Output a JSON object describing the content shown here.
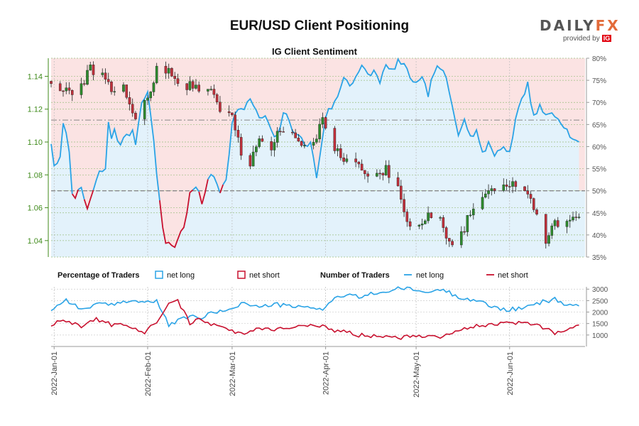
{
  "header": {
    "title": "EUR/USD Client Positioning",
    "logo_daily": "DAILY",
    "logo_fx": "FX",
    "logo_provided": "provided by",
    "logo_ig": "IG"
  },
  "colors": {
    "long": "#2aa3e6",
    "short": "#c8102e",
    "candle_up": "#2e8b2e",
    "candle_down": "#c0303b",
    "bg_short": "#fbe3e3",
    "bg_long": "#e3f2fb",
    "grid": "#6da84b",
    "axis_left": "#3f8a1a"
  },
  "chart_data": [
    {
      "id": "price_sentiment",
      "type": "line+candlestick",
      "title": "IG Client Sentiment",
      "x_range": [
        "2021-12-31",
        "2022-06-26"
      ],
      "y_price_range": [
        1.03,
        1.151
      ],
      "y_price_ticks": [
        "1.04",
        "1.06",
        "1.08",
        "1.10",
        "1.12",
        "1.14"
      ],
      "y_pct_range": [
        35,
        80
      ],
      "y_pct_ticks": [
        "35%",
        "40%",
        "45%",
        "50%",
        "55%",
        "60%",
        "65%",
        "70%",
        "75%",
        "80%"
      ],
      "reference_lines_pct": [
        50,
        66
      ],
      "pct_net_long_anchors": [
        [
          "2021-12-31",
          61
        ],
        [
          "2022-01-01",
          55
        ],
        [
          "2022-01-03",
          57
        ],
        [
          "2022-01-04",
          66
        ],
        [
          "2022-01-06",
          59
        ],
        [
          "2022-01-07",
          50
        ],
        [
          "2022-01-08",
          49
        ],
        [
          "2022-01-10",
          50
        ],
        [
          "2022-01-12",
          46
        ],
        [
          "2022-01-14",
          50
        ],
        [
          "2022-01-16",
          54
        ],
        [
          "2022-01-18",
          55
        ],
        [
          "2022-01-19",
          65
        ],
        [
          "2022-01-20",
          62
        ],
        [
          "2022-01-21",
          64
        ],
        [
          "2022-01-23",
          60
        ],
        [
          "2022-01-25",
          63
        ],
        [
          "2022-01-27",
          63
        ],
        [
          "2022-01-28",
          61
        ],
        [
          "2022-01-30",
          70
        ],
        [
          "2022-02-01",
          73
        ],
        [
          "2022-02-03",
          61
        ],
        [
          "2022-02-06",
          41
        ],
        [
          "2022-02-07",
          38.5
        ],
        [
          "2022-02-10",
          37.5
        ],
        [
          "2022-02-13",
          42
        ],
        [
          "2022-02-15",
          49
        ],
        [
          "2022-02-17",
          51
        ],
        [
          "2022-02-19",
          47
        ],
        [
          "2022-02-21",
          53
        ],
        [
          "2022-02-23",
          53
        ],
        [
          "2022-02-25",
          50
        ],
        [
          "2022-02-27",
          53
        ],
        [
          "2022-03-01",
          65
        ],
        [
          "2022-03-03",
          69
        ],
        [
          "2022-03-05",
          68
        ],
        [
          "2022-03-07",
          71
        ],
        [
          "2022-03-09",
          68
        ],
        [
          "2022-03-10",
          66
        ],
        [
          "2022-03-12",
          67
        ],
        [
          "2022-03-14",
          63
        ],
        [
          "2022-03-16",
          62
        ],
        [
          "2022-03-18",
          68
        ],
        [
          "2022-03-21",
          64
        ],
        [
          "2022-03-23",
          63
        ],
        [
          "2022-03-25",
          60
        ],
        [
          "2022-03-27",
          61
        ],
        [
          "2022-03-29",
          53
        ],
        [
          "2022-04-01",
          67
        ],
        [
          "2022-04-03",
          69
        ],
        [
          "2022-04-05",
          71
        ],
        [
          "2022-04-07",
          76
        ],
        [
          "2022-04-09",
          74
        ],
        [
          "2022-04-11",
          76
        ],
        [
          "2022-04-13",
          78
        ],
        [
          "2022-04-15",
          76
        ],
        [
          "2022-04-17",
          77
        ],
        [
          "2022-04-19",
          75
        ],
        [
          "2022-04-21",
          78
        ],
        [
          "2022-04-23",
          77
        ],
        [
          "2022-04-25",
          79.5
        ],
        [
          "2022-04-27",
          78
        ],
        [
          "2022-04-29",
          76
        ],
        [
          "2022-05-01",
          74
        ],
        [
          "2022-05-03",
          75
        ],
        [
          "2022-05-05",
          72
        ],
        [
          "2022-05-07",
          77
        ],
        [
          "2022-05-09",
          78
        ],
        [
          "2022-05-11",
          75
        ],
        [
          "2022-05-13",
          69
        ],
        [
          "2022-05-15",
          63
        ],
        [
          "2022-05-17",
          67
        ],
        [
          "2022-05-19",
          62
        ],
        [
          "2022-05-21",
          64
        ],
        [
          "2022-05-23",
          58
        ],
        [
          "2022-05-25",
          61
        ],
        [
          "2022-05-27",
          58
        ],
        [
          "2022-05-29",
          60
        ],
        [
          "2022-06-01",
          59
        ],
        [
          "2022-06-03",
          66
        ],
        [
          "2022-06-05",
          71
        ],
        [
          "2022-06-07",
          74
        ],
        [
          "2022-06-09",
          67
        ],
        [
          "2022-06-11",
          69
        ],
        [
          "2022-06-13",
          67
        ],
        [
          "2022-06-15",
          68
        ],
        [
          "2022-06-17",
          66
        ],
        [
          "2022-06-19",
          65
        ],
        [
          "2022-06-21",
          62
        ],
        [
          "2022-06-23",
          61
        ]
      ],
      "price_close_anchors": [
        [
          "2021-12-31",
          1.137
        ],
        [
          "2022-01-05",
          1.13
        ],
        [
          "2022-01-10",
          1.133
        ],
        [
          "2022-01-13",
          1.145
        ],
        [
          "2022-01-17",
          1.14
        ],
        [
          "2022-01-20",
          1.133
        ],
        [
          "2022-01-24",
          1.133
        ],
        [
          "2022-01-28",
          1.115
        ],
        [
          "2022-02-01",
          1.125
        ],
        [
          "2022-02-04",
          1.145
        ],
        [
          "2022-02-08",
          1.143
        ],
        [
          "2022-02-11",
          1.136
        ],
        [
          "2022-02-15",
          1.134
        ],
        [
          "2022-02-18",
          1.132
        ],
        [
          "2022-02-22",
          1.133
        ],
        [
          "2022-02-25",
          1.119
        ],
        [
          "2022-03-01",
          1.114
        ],
        [
          "2022-03-04",
          1.093
        ],
        [
          "2022-03-07",
          1.088
        ],
        [
          "2022-03-10",
          1.101
        ],
        [
          "2022-03-14",
          1.093
        ],
        [
          "2022-03-17",
          1.109
        ],
        [
          "2022-03-21",
          1.103
        ],
        [
          "2022-03-24",
          1.1
        ],
        [
          "2022-03-28",
          1.097
        ],
        [
          "2022-03-31",
          1.114
        ],
        [
          "2022-04-04",
          1.097
        ],
        [
          "2022-04-07",
          1.089
        ],
        [
          "2022-04-11",
          1.086
        ],
        [
          "2022-04-14",
          1.081
        ],
        [
          "2022-04-18",
          1.08
        ],
        [
          "2022-04-21",
          1.083
        ],
        [
          "2022-04-25",
          1.071
        ],
        [
          "2022-04-28",
          1.05
        ],
        [
          "2022-05-02",
          1.051
        ],
        [
          "2022-05-05",
          1.055
        ],
        [
          "2022-05-09",
          1.052
        ],
        [
          "2022-05-12",
          1.038
        ],
        [
          "2022-05-16",
          1.043
        ],
        [
          "2022-05-19",
          1.058
        ],
        [
          "2022-05-23",
          1.069
        ],
        [
          "2022-05-26",
          1.072
        ],
        [
          "2022-05-30",
          1.073
        ],
        [
          "2022-06-02",
          1.075
        ],
        [
          "2022-06-06",
          1.07
        ],
        [
          "2022-06-09",
          1.061
        ],
        [
          "2022-06-13",
          1.041
        ],
        [
          "2022-06-16",
          1.05
        ],
        [
          "2022-06-20",
          1.052
        ],
        [
          "2022-06-24",
          1.056
        ]
      ]
    },
    {
      "id": "trader_counts",
      "type": "line",
      "x_range": [
        "2021-12-31",
        "2022-06-26"
      ],
      "y_range": [
        500,
        3100
      ],
      "y_ticks": [
        "1000",
        "1500",
        "2000",
        "2500",
        "3000"
      ],
      "series": [
        {
          "name": "net long",
          "anchors": [
            [
              "2021-12-31",
              2100
            ],
            [
              "2022-01-05",
              2550
            ],
            [
              "2022-01-10",
              2100
            ],
            [
              "2022-01-15",
              2350
            ],
            [
              "2022-01-20",
              2300
            ],
            [
              "2022-01-25",
              2500
            ],
            [
              "2022-01-31",
              2450
            ],
            [
              "2022-02-04",
              2450
            ],
            [
              "2022-02-08",
              1450
            ],
            [
              "2022-02-11",
              1600
            ],
            [
              "2022-02-15",
              1850
            ],
            [
              "2022-02-18",
              1700
            ],
            [
              "2022-02-22",
              1950
            ],
            [
              "2022-02-25",
              2000
            ],
            [
              "2022-03-01",
              2200
            ],
            [
              "2022-03-05",
              2400
            ],
            [
              "2022-03-10",
              2200
            ],
            [
              "2022-03-15",
              2350
            ],
            [
              "2022-03-20",
              2250
            ],
            [
              "2022-03-25",
              2200
            ],
            [
              "2022-03-31",
              2150
            ],
            [
              "2022-04-04",
              2600
            ],
            [
              "2022-04-08",
              2750
            ],
            [
              "2022-04-12",
              2650
            ],
            [
              "2022-04-18",
              2850
            ],
            [
              "2022-04-22",
              2900
            ],
            [
              "2022-04-26",
              3050
            ],
            [
              "2022-05-01",
              2950
            ],
            [
              "2022-05-05",
              2850
            ],
            [
              "2022-05-10",
              3000
            ],
            [
              "2022-05-14",
              2700
            ],
            [
              "2022-05-18",
              2600
            ],
            [
              "2022-05-22",
              2450
            ],
            [
              "2022-05-26",
              2250
            ],
            [
              "2022-05-31",
              2100
            ],
            [
              "2022-06-04",
              2150
            ],
            [
              "2022-06-08",
              2250
            ],
            [
              "2022-06-12",
              2450
            ],
            [
              "2022-06-16",
              2550
            ],
            [
              "2022-06-20",
              2300
            ],
            [
              "2022-06-25",
              2300
            ]
          ]
        },
        {
          "name": "net short",
          "anchors": [
            [
              "2021-12-31",
              1450
            ],
            [
              "2022-01-05",
              1650
            ],
            [
              "2022-01-10",
              1400
            ],
            [
              "2022-01-15",
              1700
            ],
            [
              "2022-01-20",
              1450
            ],
            [
              "2022-01-25",
              1400
            ],
            [
              "2022-01-31",
              1100
            ],
            [
              "2022-02-04",
              1600
            ],
            [
              "2022-02-08",
              2450
            ],
            [
              "2022-02-11",
              2500
            ],
            [
              "2022-02-15",
              1500
            ],
            [
              "2022-02-18",
              1800
            ],
            [
              "2022-02-22",
              1450
            ],
            [
              "2022-02-25",
              1400
            ],
            [
              "2022-03-01",
              1150
            ],
            [
              "2022-03-05",
              1100
            ],
            [
              "2022-03-10",
              1300
            ],
            [
              "2022-03-15",
              1250
            ],
            [
              "2022-03-20",
              1350
            ],
            [
              "2022-03-25",
              1400
            ],
            [
              "2022-03-31",
              1350
            ],
            [
              "2022-04-04",
              1200
            ],
            [
              "2022-04-08",
              1150
            ],
            [
              "2022-04-12",
              1000
            ],
            [
              "2022-04-18",
              950
            ],
            [
              "2022-04-22",
              1000
            ],
            [
              "2022-04-26",
              900
            ],
            [
              "2022-05-01",
              1000
            ],
            [
              "2022-05-05",
              950
            ],
            [
              "2022-05-10",
              950
            ],
            [
              "2022-05-14",
              1200
            ],
            [
              "2022-05-18",
              1300
            ],
            [
              "2022-05-22",
              1400
            ],
            [
              "2022-05-26",
              1450
            ],
            [
              "2022-05-31",
              1500
            ],
            [
              "2022-06-04",
              1550
            ],
            [
              "2022-06-08",
              1500
            ],
            [
              "2022-06-12",
              1350
            ],
            [
              "2022-06-16",
              1100
            ],
            [
              "2022-06-20",
              1250
            ],
            [
              "2022-06-25",
              1400
            ]
          ]
        }
      ]
    }
  ],
  "x_ticks": [
    "2022-Jan-01",
    "2022-Feb-01",
    "2022-Mar-01",
    "2022-Apr-01",
    "2022-May-01",
    "2022-Jun-01"
  ],
  "legend": {
    "pct_label": "Percentage of Traders",
    "num_label": "Number of Traders",
    "net_long": "net long",
    "net_short": "net short"
  }
}
